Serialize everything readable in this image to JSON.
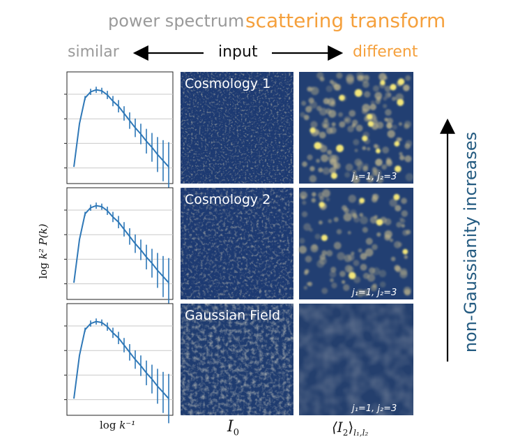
{
  "header": {
    "power_spectrum": "power spectrum",
    "scattering_transform": "scattering transform",
    "similar": "similar",
    "input": "input",
    "different": "different"
  },
  "axes": {
    "ylabel_log": "log",
    "ylabel_expr": "k² P(k)",
    "xlabel_log": "log",
    "xlabel_expr": "k⁻¹",
    "column_input_label": "I",
    "column_input_sub": "0",
    "column_scatter_label": "⟨I",
    "column_scatter_sub": "2",
    "column_scatter_close": "⟩",
    "column_scatter_indices": "l₁,l₂"
  },
  "side_label": "non-Gaussianity increases",
  "rows": [
    {
      "title": "Cosmology 1",
      "scatter_label": "j₁=1, j₂=3"
    },
    {
      "title": "Cosmology 2",
      "scatter_label": "j₁=1, j₂=3"
    },
    {
      "title": "Gaussian Field",
      "scatter_label": "j₁=1, j₂=3"
    }
  ],
  "colors": {
    "curve": "#2f78b7",
    "field_base": "#1d3a72",
    "blob": "#f3e67a",
    "accent_orange": "#f5a03c",
    "side_label": "#235a80"
  },
  "chart_data": {
    "type": "line",
    "title": "",
    "xlabel": "log k^-1",
    "ylabel": "log k^2 P(k)",
    "panels": 3,
    "x": [
      0,
      1,
      2,
      3,
      4,
      5,
      6,
      7,
      8,
      9,
      10,
      11,
      12,
      13,
      14,
      15,
      16,
      17
    ],
    "series": [
      {
        "name": "Cosmology 1",
        "values": [
          0.13,
          0.55,
          0.8,
          0.86,
          0.88,
          0.87,
          0.83,
          0.77,
          0.72,
          0.65,
          0.58,
          0.51,
          0.45,
          0.38,
          0.32,
          0.25,
          0.19,
          0.13
        ],
        "errors": [
          0,
          0,
          0.02,
          0.03,
          0.03,
          0.03,
          0.04,
          0.05,
          0.06,
          0.07,
          0.08,
          0.09,
          0.1,
          0.12,
          0.14,
          0.17,
          0.2,
          0.24
        ]
      },
      {
        "name": "Cosmology 2",
        "values": [
          0.13,
          0.55,
          0.8,
          0.86,
          0.88,
          0.87,
          0.83,
          0.77,
          0.72,
          0.65,
          0.58,
          0.51,
          0.45,
          0.38,
          0.32,
          0.25,
          0.19,
          0.13
        ],
        "errors": [
          0,
          0,
          0.02,
          0.03,
          0.03,
          0.03,
          0.04,
          0.05,
          0.06,
          0.07,
          0.08,
          0.09,
          0.1,
          0.12,
          0.14,
          0.17,
          0.2,
          0.24
        ]
      },
      {
        "name": "Gaussian Field",
        "values": [
          0.13,
          0.55,
          0.8,
          0.86,
          0.88,
          0.87,
          0.83,
          0.77,
          0.72,
          0.65,
          0.58,
          0.51,
          0.45,
          0.38,
          0.32,
          0.25,
          0.19,
          0.13
        ],
        "errors": [
          0,
          0,
          0.02,
          0.03,
          0.03,
          0.03,
          0.04,
          0.05,
          0.06,
          0.07,
          0.08,
          0.09,
          0.1,
          0.12,
          0.14,
          0.17,
          0.2,
          0.24
        ]
      }
    ],
    "ylim": [
      0,
      1
    ],
    "grid": true
  }
}
